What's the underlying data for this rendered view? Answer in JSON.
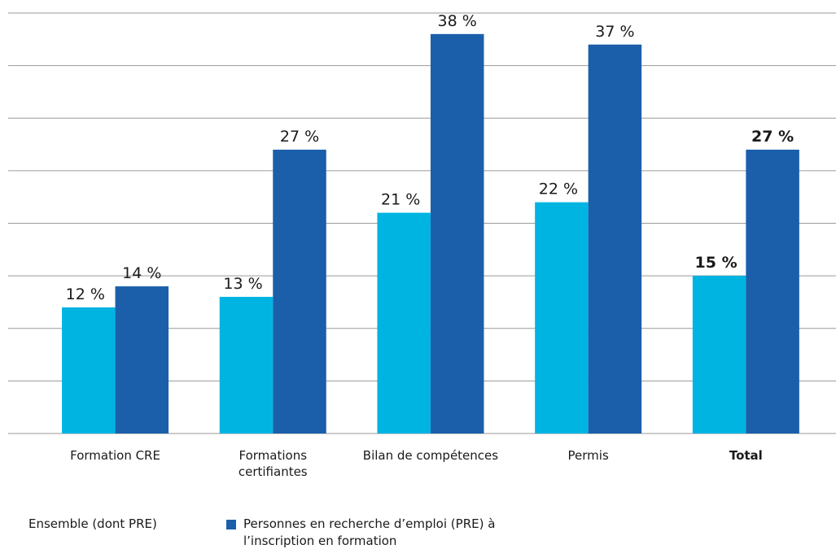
{
  "chart_data": {
    "type": "bar",
    "categories": [
      "Formation CRE",
      "Formations certifiantes",
      "Bilan de compétences",
      "Permis",
      "Total"
    ],
    "series": [
      {
        "name": "Ensemble (dont PRE)",
        "color": "#00b4e2",
        "values": [
          12,
          13,
          21,
          22,
          15
        ],
        "value_labels": [
          "12 %",
          "13 %",
          "21 %",
          "22 %",
          "15 %"
        ]
      },
      {
        "name": "Personnes en recherche d’emploi (PRE) à l’inscription en formation",
        "color": "#1b5faa",
        "values": [
          14,
          27,
          38,
          37,
          27
        ],
        "value_labels": [
          "14 %",
          "27 %",
          "38 %",
          "37 %",
          "27 %"
        ]
      }
    ],
    "ylim": [
      0,
      40
    ],
    "yticks": [
      0,
      5,
      10,
      15,
      20,
      25,
      30,
      35,
      40
    ],
    "grid": true
  }
}
